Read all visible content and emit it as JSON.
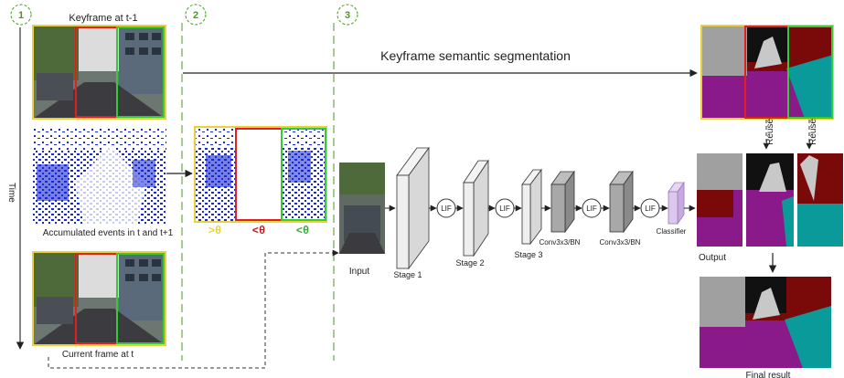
{
  "steps": [
    "1",
    "2",
    "3"
  ],
  "left": {
    "keyframe_label": "Keyframe at t-1",
    "events_label": "Accumulated events in t and t+1",
    "current_label": "Current frame at t",
    "time_label": "Time"
  },
  "thresholds": {
    "gt": ">θ",
    "lt_red": "<θ",
    "lt_green": "<θ"
  },
  "top_arrow_label": "Keyframe semantic segmentation",
  "network": {
    "input_label": "Input",
    "stage1": "Stage 1",
    "stage2": "Stage 2",
    "stage3": "Stage 3",
    "lif": "LIF",
    "conv_a": "Conv3x3/BN",
    "conv_b": "Conv3x3/BN",
    "classifier": "Classifier"
  },
  "right": {
    "reuse_a": "Reuse",
    "reuse_b": "Reuse",
    "output_label": "Output",
    "final_label": "Final result"
  },
  "colors": {
    "yellow": "#e6d23a",
    "red": "#e02020",
    "green": "#33cc33",
    "step_green": "#4a9a1a",
    "seg_purple": "#8a1a8a",
    "seg_maroon": "#7a0a0a",
    "seg_cyan": "#0a9a9a",
    "event_blue": "#1a2ad0"
  }
}
